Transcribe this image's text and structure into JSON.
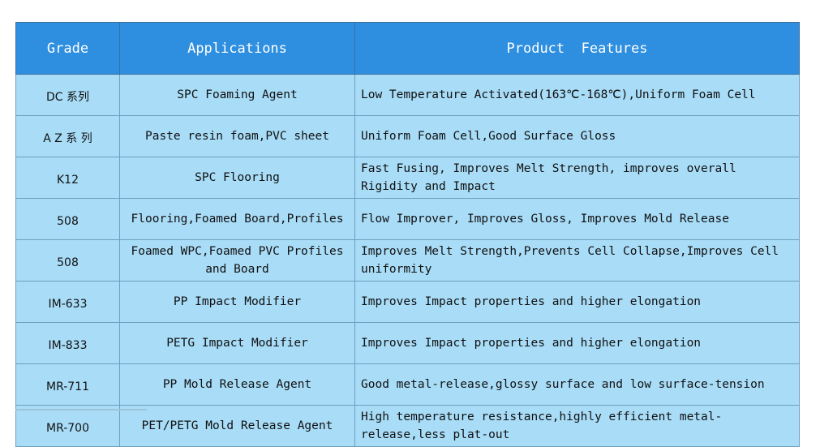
{
  "table": {
    "headers": {
      "grade": "Grade",
      "applications": "Applications",
      "features": "Product  Features"
    },
    "rows": [
      {
        "grade": "DC 系列",
        "application": "SPC Foaming Agent",
        "features": "Low Temperature Activated(163℃-168℃),Uniform Foam Cell"
      },
      {
        "grade": "A Z 系 列",
        "application": "Paste resin foam,PVC sheet",
        "features": "Uniform Foam Cell,Good Surface Gloss"
      },
      {
        "grade": "K12",
        "application": "SPC Flooring",
        "features": "Fast Fusing, Improves Melt Strength, improves overall Rigidity and Impact"
      },
      {
        "grade": "508",
        "application": "Flooring,Foamed Board,Profiles",
        "features": "Flow Improver, Improves Gloss, Improves Mold Release"
      },
      {
        "grade": "508",
        "application": "Foamed WPC,Foamed PVC Profiles and Board",
        "features": "Improves Melt Strength,Prevents Cell Collapse,Improves Cell uniformity"
      },
      {
        "grade": "IM-633",
        "application": "PP Impact Modifier",
        "features": "Improves Impact properties and higher elongation"
      },
      {
        "grade": "IM-833",
        "application": "PETG Impact Modifier",
        "features": "Improves Impact properties and higher elongation"
      },
      {
        "grade": "MR-711",
        "application": "PP Mold Release Agent",
        "features": "Good metal-release,glossy surface and low surface-tension"
      },
      {
        "grade": "MR-700",
        "application": "PET/PETG Mold Release Agent",
        "features": "High temperature resistance,highly efficient metal-release,less plat-out"
      }
    ]
  }
}
